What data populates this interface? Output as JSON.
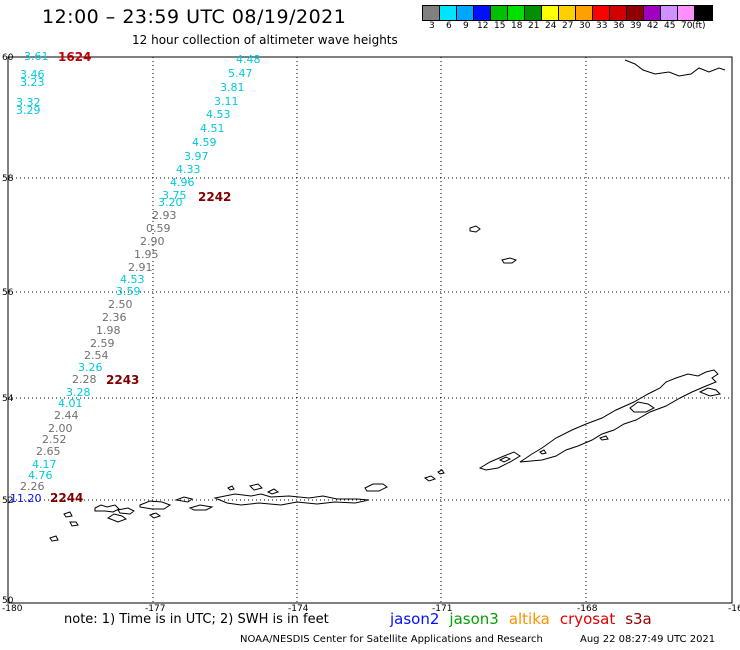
{
  "title": "12:00 – 23:59 UTC 08/19/2021",
  "subtitle": "12 hour collection of altimeter wave heights",
  "colorbar": {
    "colors": [
      "#808080",
      "#00e5ff",
      "#00a6ff",
      "#0010ff",
      "#00c000",
      "#00e000",
      "#009000",
      "#ffff00",
      "#ffd000",
      "#ffa000",
      "#ff0000",
      "#d00000",
      "#900000",
      "#a000c0",
      "#d090ff",
      "#ff90ff",
      "#000000"
    ],
    "labels": [
      "3",
      "6",
      "9",
      "12",
      "15",
      "18",
      "21",
      "24",
      "27",
      "30",
      "33",
      "36",
      "39",
      "42",
      "45",
      "70",
      "(ft)"
    ]
  },
  "axes": {
    "lon_labels": [
      "-180",
      "-177",
      "-174",
      "-171",
      "-168",
      "-16"
    ],
    "lat_labels": [
      "60",
      "58",
      "56",
      "54",
      "52",
      "50"
    ]
  },
  "track_colors": {
    "cyan": "#00c8dc",
    "gray": "#707070",
    "blue": "#0010ff",
    "red": "#c00000",
    "darkred": "#800000"
  },
  "tracks": [
    {
      "pass": "1624",
      "values": [
        {
          "v": "3.61",
          "c": "cyan"
        },
        {
          "v": "3.46",
          "c": "cyan"
        },
        {
          "v": "3.23",
          "c": "cyan"
        },
        {
          "v": "3.32",
          "c": "cyan"
        },
        {
          "v": "3.29",
          "c": "cyan"
        }
      ]
    },
    {
      "pass": "2242",
      "values": [
        {
          "v": "4.48",
          "c": "cyan"
        },
        {
          "v": "5.47",
          "c": "cyan"
        },
        {
          "v": "3.81",
          "c": "cyan"
        },
        {
          "v": "3.11",
          "c": "cyan"
        },
        {
          "v": "4.53",
          "c": "cyan"
        },
        {
          "v": "4.51",
          "c": "cyan"
        },
        {
          "v": "4.59",
          "c": "cyan"
        },
        {
          "v": "3.97",
          "c": "cyan"
        },
        {
          "v": "4.33",
          "c": "cyan"
        },
        {
          "v": "4.96",
          "c": "cyan"
        },
        {
          "v": "3.75",
          "c": "cyan"
        },
        {
          "v": "3.20",
          "c": "cyan"
        },
        {
          "v": "2.93",
          "c": "gray"
        },
        {
          "v": "0.59",
          "c": "gray"
        },
        {
          "v": "2.90",
          "c": "gray"
        },
        {
          "v": "1.95",
          "c": "gray"
        },
        {
          "v": "2.91",
          "c": "gray"
        },
        {
          "v": "4.53",
          "c": "cyan"
        },
        {
          "v": "3.59",
          "c": "cyan"
        }
      ]
    },
    {
      "pass": "2243",
      "values": [
        {
          "v": "2.50",
          "c": "gray"
        },
        {
          "v": "2.36",
          "c": "gray"
        },
        {
          "v": "1.98",
          "c": "gray"
        },
        {
          "v": "2.59",
          "c": "gray"
        },
        {
          "v": "2.54",
          "c": "gray"
        },
        {
          "v": "3.26",
          "c": "cyan"
        },
        {
          "v": "2.28",
          "c": "gray"
        },
        {
          "v": "3.28",
          "c": "cyan"
        },
        {
          "v": "4.01",
          "c": "cyan"
        }
      ]
    },
    {
      "pass": "2244",
      "values": [
        {
          "v": "2.44",
          "c": "gray"
        },
        {
          "v": "2.00",
          "c": "gray"
        },
        {
          "v": "2.52",
          "c": "gray"
        },
        {
          "v": "2.65",
          "c": "gray"
        },
        {
          "v": "4.17",
          "c": "cyan"
        },
        {
          "v": "4.76",
          "c": "cyan"
        },
        {
          "v": "2.26",
          "c": "gray"
        },
        {
          "v": "11.20",
          "c": "blue"
        }
      ]
    }
  ],
  "note": "note: 1) Time is in UTC; 2) SWH is in feet",
  "legend": [
    {
      "name": "jason2",
      "color": "#0010ff"
    },
    {
      "name": "jason3",
      "color": "#00a000"
    },
    {
      "name": "altika",
      "color": "#ff9000"
    },
    {
      "name": "cryosat",
      "color": "#e00000"
    },
    {
      "name": "s3a",
      "color": "#900000"
    }
  ],
  "footer": "NOAA/NESDIS Center for Satellite Applications and Research",
  "footer_time": "Aug 22 08:27:49 UTC 2021"
}
